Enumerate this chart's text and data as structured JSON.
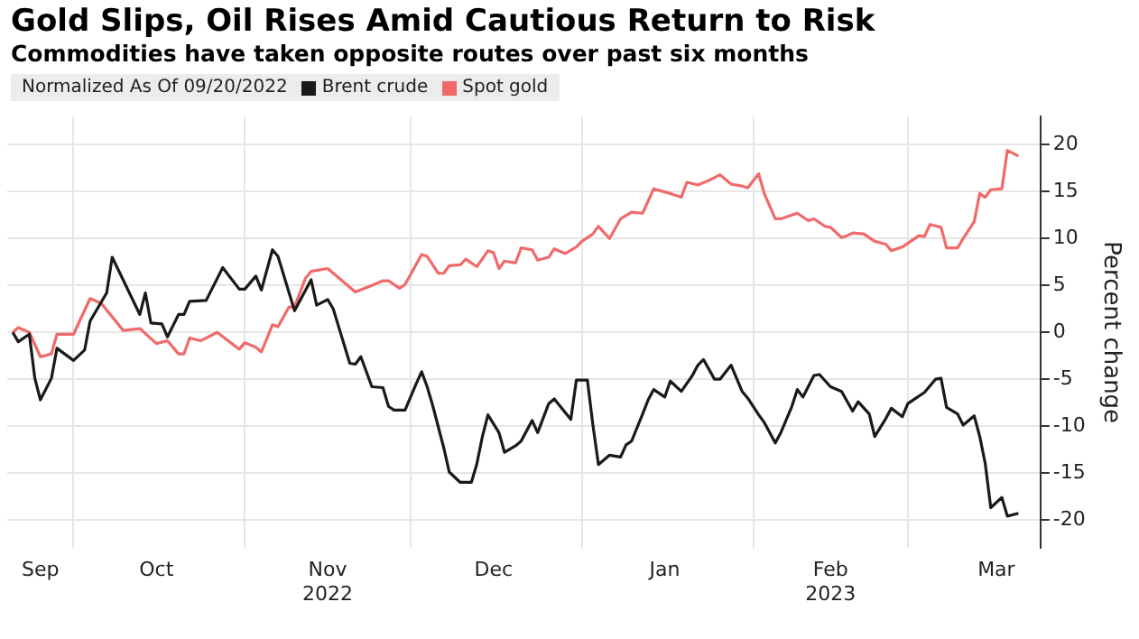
{
  "chart_data": {
    "type": "line",
    "title": "Gold Slips, Oil Rises Amid Cautious Return to Risk",
    "subtitle": "Commodities have taken opposite routes over past six months",
    "legend_title": "Normalized As Of 09/20/2022",
    "ylabel": "Percent change",
    "legend": "top left",
    "grid": true,
    "marker": "none",
    "line_style": "solid",
    "xlim": [
      "2022-09-19",
      "2023-03-25"
    ],
    "xticks": [
      {
        "value": "2022-09-25",
        "label": "Sep"
      },
      {
        "value": "2022-10-01",
        "label": null
      },
      {
        "value": "2022-10-16",
        "label": "Oct"
      },
      {
        "value": "2022-11-01",
        "label": null
      },
      {
        "value": "2022-11-16",
        "label": "Nov\n2022"
      },
      {
        "value": "2022-12-01",
        "label": null
      },
      {
        "value": "2022-12-16",
        "label": "Dec"
      },
      {
        "value": "2023-01-01",
        "label": null
      },
      {
        "value": "2023-01-16",
        "label": "Jan"
      },
      {
        "value": "2023-02-01",
        "label": null
      },
      {
        "value": "2023-02-15",
        "label": "Feb\n2023"
      },
      {
        "value": "2023-03-01",
        "label": null
      },
      {
        "value": "2023-03-17",
        "label": "Mar"
      }
    ],
    "ylim": [
      -23,
      23
    ],
    "yticks": [
      -20,
      -15,
      -10,
      -5,
      0,
      5,
      10,
      15,
      20
    ],
    "series": [
      {
        "name": "Brent crude",
        "color": "#1a1a1a",
        "x": [
          "2022-09-20",
          "2022-09-21",
          "2022-09-23",
          "2022-09-24",
          "2022-09-25",
          "2022-09-27",
          "2022-09-28",
          "2022-10-01",
          "2022-10-03",
          "2022-10-04",
          "2022-10-07",
          "2022-10-08",
          "2022-10-13",
          "2022-10-14",
          "2022-10-15",
          "2022-10-17",
          "2022-10-18",
          "2022-10-20",
          "2022-10-21",
          "2022-10-22",
          "2022-10-25",
          "2022-10-28",
          "2022-10-31",
          "2022-11-01",
          "2022-11-03",
          "2022-11-04",
          "2022-11-06",
          "2022-11-07",
          "2022-11-10",
          "2022-11-13",
          "2022-11-14",
          "2022-11-16",
          "2022-11-17",
          "2022-11-20",
          "2022-11-21",
          "2022-11-22",
          "2022-11-24",
          "2022-11-26",
          "2022-11-27",
          "2022-11-28",
          "2022-11-30",
          "2022-12-02",
          "2022-12-03",
          "2022-12-04",
          "2022-12-05",
          "2022-12-07",
          "2022-12-08",
          "2022-12-10",
          "2022-12-12",
          "2022-12-13",
          "2022-12-14",
          "2022-12-15",
          "2022-12-17",
          "2022-12-18",
          "2022-12-20",
          "2022-12-21",
          "2022-12-23",
          "2022-12-24",
          "2022-12-26",
          "2022-12-27",
          "2022-12-30",
          "2022-12-31",
          "2023-01-02",
          "2023-01-03",
          "2023-01-04",
          "2023-01-06",
          "2023-01-08",
          "2023-01-09",
          "2023-01-10",
          "2023-01-12",
          "2023-01-13",
          "2023-01-14",
          "2023-01-16",
          "2023-01-17",
          "2023-01-19",
          "2023-01-21",
          "2023-01-22",
          "2023-01-23",
          "2023-01-25",
          "2023-01-26",
          "2023-01-28",
          "2023-01-30",
          "2023-01-31",
          "2023-02-02",
          "2023-02-03",
          "2023-02-05",
          "2023-02-06",
          "2023-02-08",
          "2023-02-09",
          "2023-02-10",
          "2023-02-12",
          "2023-02-13",
          "2023-02-15",
          "2023-02-17",
          "2023-02-19",
          "2023-02-20",
          "2023-02-22",
          "2023-02-23",
          "2023-02-25",
          "2023-02-26",
          "2023-02-28",
          "2023-03-01",
          "2023-03-04",
          "2023-03-06",
          "2023-03-07",
          "2023-03-08",
          "2023-03-10",
          "2023-03-11",
          "2023-03-13",
          "2023-03-14",
          "2023-03-15",
          "2023-03-16",
          "2023-03-18",
          "2023-03-19",
          "2023-03-21"
        ],
        "values": [
          0,
          -1.0,
          -0.2,
          -4.9,
          -7.2,
          -4.9,
          -1.7,
          -3.0,
          -1.9,
          1.2,
          4.2,
          8.0,
          1.9,
          4.2,
          1.0,
          0.9,
          -0.5,
          1.9,
          1.9,
          3.3,
          3.4,
          6.9,
          4.6,
          4.6,
          6.0,
          4.5,
          8.8,
          8.1,
          2.3,
          5.6,
          2.9,
          3.5,
          2.5,
          -3.3,
          -3.4,
          -2.6,
          -5.8,
          -5.9,
          -7.9,
          -8.3,
          -8.3,
          -5.5,
          -4.2,
          -5.8,
          -7.8,
          -12.3,
          -14.9,
          -16.0,
          -16.0,
          -14.0,
          -11.1,
          -8.8,
          -10.7,
          -12.8,
          -12.1,
          -11.6,
          -9.4,
          -10.7,
          -7.6,
          -7.1,
          -9.3,
          -5.1,
          -5.1,
          -9.9,
          -14.1,
          -13.1,
          -13.3,
          -12.0,
          -11.6,
          -8.7,
          -7.2,
          -6.1,
          -6.9,
          -5.2,
          -6.3,
          -4.6,
          -3.5,
          -2.9,
          -5.0,
          -5.0,
          -3.5,
          -6.3,
          -7.0,
          -8.8,
          -9.6,
          -11.8,
          -10.7,
          -7.9,
          -6.1,
          -6.9,
          -4.6,
          -4.5,
          -5.8,
          -6.3,
          -8.4,
          -7.4,
          -8.7,
          -11.1,
          -9.2,
          -8.1,
          -9.0,
          -7.6,
          -6.4,
          -5.0,
          -4.9,
          -8.0,
          -8.7,
          -9.9,
          -8.9,
          -11.1,
          -14.0,
          -18.7,
          -17.6,
          -19.6,
          -19.3
        ]
      },
      {
        "name": "Spot gold",
        "color": "#f06a6a",
        "x": [
          "2022-09-20",
          "2022-09-21",
          "2022-09-23",
          "2022-09-25",
          "2022-09-27",
          "2022-09-28",
          "2022-10-01",
          "2022-10-04",
          "2022-10-06",
          "2022-10-10",
          "2022-10-13",
          "2022-10-16",
          "2022-10-18",
          "2022-10-20",
          "2022-10-21",
          "2022-10-22",
          "2022-10-24",
          "2022-10-27",
          "2022-10-31",
          "2022-11-01",
          "2022-11-03",
          "2022-11-04",
          "2022-11-06",
          "2022-11-07",
          "2022-11-09",
          "2022-11-10",
          "2022-11-12",
          "2022-11-13",
          "2022-11-16",
          "2022-11-21",
          "2022-11-24",
          "2022-11-26",
          "2022-11-27",
          "2022-11-29",
          "2022-11-30",
          "2022-12-03",
          "2022-12-04",
          "2022-12-06",
          "2022-12-07",
          "2022-12-08",
          "2022-12-10",
          "2022-12-11",
          "2022-12-13",
          "2022-12-15",
          "2022-12-16",
          "2022-12-17",
          "2022-12-18",
          "2022-12-20",
          "2022-12-21",
          "2022-12-23",
          "2022-12-24",
          "2022-12-26",
          "2022-12-27",
          "2022-12-29",
          "2022-12-31",
          "2023-01-01",
          "2023-01-03",
          "2023-01-04",
          "2023-01-06",
          "2023-01-08",
          "2023-01-10",
          "2023-01-12",
          "2023-01-14",
          "2023-01-17",
          "2023-01-19",
          "2023-01-20",
          "2023-01-22",
          "2023-01-24",
          "2023-01-26",
          "2023-01-28",
          "2023-01-30",
          "2023-01-31",
          "2023-02-02",
          "2023-02-03",
          "2023-02-05",
          "2023-02-06",
          "2023-02-08",
          "2023-02-09",
          "2023-02-11",
          "2023-02-12",
          "2023-02-14",
          "2023-02-15",
          "2023-02-17",
          "2023-02-18",
          "2023-02-19",
          "2023-02-21",
          "2023-02-23",
          "2023-02-25",
          "2023-02-26",
          "2023-02-28",
          "2023-03-03",
          "2023-03-04",
          "2023-03-05",
          "2023-03-07",
          "2023-03-08",
          "2023-03-10",
          "2023-03-11",
          "2023-03-13",
          "2023-03-14",
          "2023-03-15",
          "2023-03-16",
          "2023-03-18",
          "2023-03-19",
          "2023-03-21"
        ],
        "values": [
          0,
          0.5,
          0,
          -2.6,
          -2.3,
          -0.2,
          -0.2,
          3.6,
          3.1,
          0.2,
          0.4,
          -1.2,
          -0.9,
          -2.3,
          -2.3,
          -0.6,
          -0.9,
          0.0,
          -1.8,
          -1.1,
          -1.6,
          -2.1,
          0.8,
          0.6,
          2.7,
          2.7,
          5.8,
          6.5,
          6.8,
          4.3,
          5.0,
          5.5,
          5.5,
          4.7,
          5.1,
          8.3,
          8.1,
          6.3,
          6.3,
          7.1,
          7.2,
          7.8,
          7.0,
          8.7,
          8.5,
          6.8,
          7.6,
          7.4,
          9.0,
          8.8,
          7.7,
          8.0,
          8.9,
          8.4,
          9.1,
          9.7,
          10.5,
          11.3,
          10.0,
          12.1,
          12.8,
          12.7,
          15.3,
          14.8,
          14.4,
          16.0,
          15.7,
          16.2,
          16.8,
          15.8,
          15.6,
          15.4,
          16.9,
          14.8,
          12.1,
          12.1,
          12.5,
          12.7,
          11.9,
          12.1,
          11.3,
          11.2,
          10.1,
          10.3,
          10.6,
          10.5,
          9.7,
          9.4,
          8.7,
          9.1,
          10.3,
          10.2,
          11.5,
          11.2,
          9.0,
          9.0,
          10.0,
          11.8,
          14.8,
          14.4,
          15.2,
          15.3,
          19.4,
          18.8
        ]
      }
    ]
  }
}
